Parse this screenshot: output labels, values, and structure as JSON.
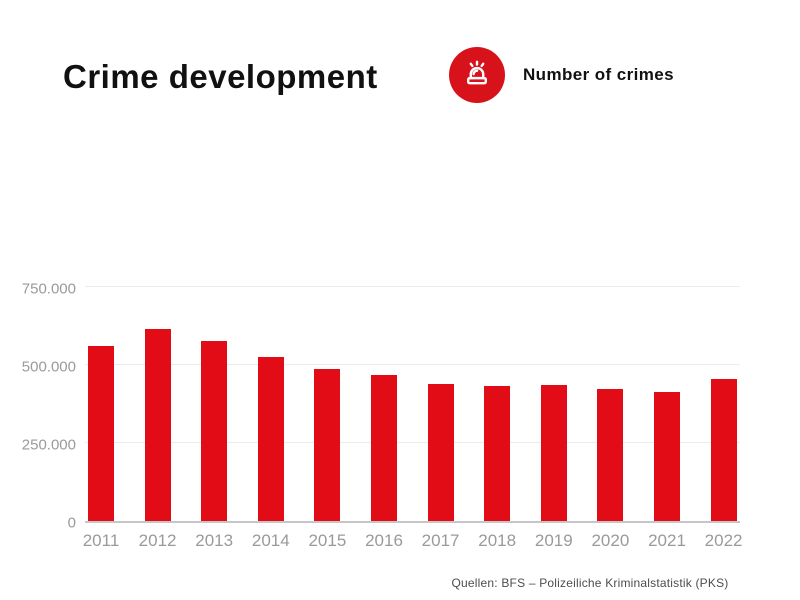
{
  "header": {
    "title": "Crime development",
    "legend": {
      "icon": "siren-icon",
      "label": "Number of crimes"
    }
  },
  "source_note": "Quellen: BFS – Polizeiliche Kriminalstatistik (PKS)",
  "colors": {
    "bar_red": "#e10c15",
    "icon_circle_red": "#d8121b",
    "axis_tick_text": "#9a9a9a",
    "gridline": "#ececec",
    "baseline": "#c6c6c6",
    "title_text": "#111111",
    "source_text": "#4d4d4d"
  },
  "chart_data": {
    "type": "bar",
    "title": "Crime development",
    "legend_entries": [
      "Number of crimes"
    ],
    "legend_position": "top-right",
    "categories": [
      "2011",
      "2012",
      "2013",
      "2014",
      "2015",
      "2016",
      "2017",
      "2018",
      "2019",
      "2020",
      "2021",
      "2022"
    ],
    "values": [
      560000,
      615000,
      577000,
      527000,
      488000,
      467000,
      439000,
      433000,
      436000,
      422000,
      413000,
      456000
    ],
    "xlabel": "",
    "ylabel": "",
    "ylim": [
      0,
      750000
    ],
    "yticks": [
      0,
      250000,
      500000,
      750000
    ],
    "ytick_labels": [
      "0",
      "250.000",
      "500.000",
      "750.000"
    ],
    "grid": true,
    "bar_color": "#e10c15",
    "source": "Quellen: BFS – Polizeiliche Kriminalstatistik (PKS)"
  }
}
